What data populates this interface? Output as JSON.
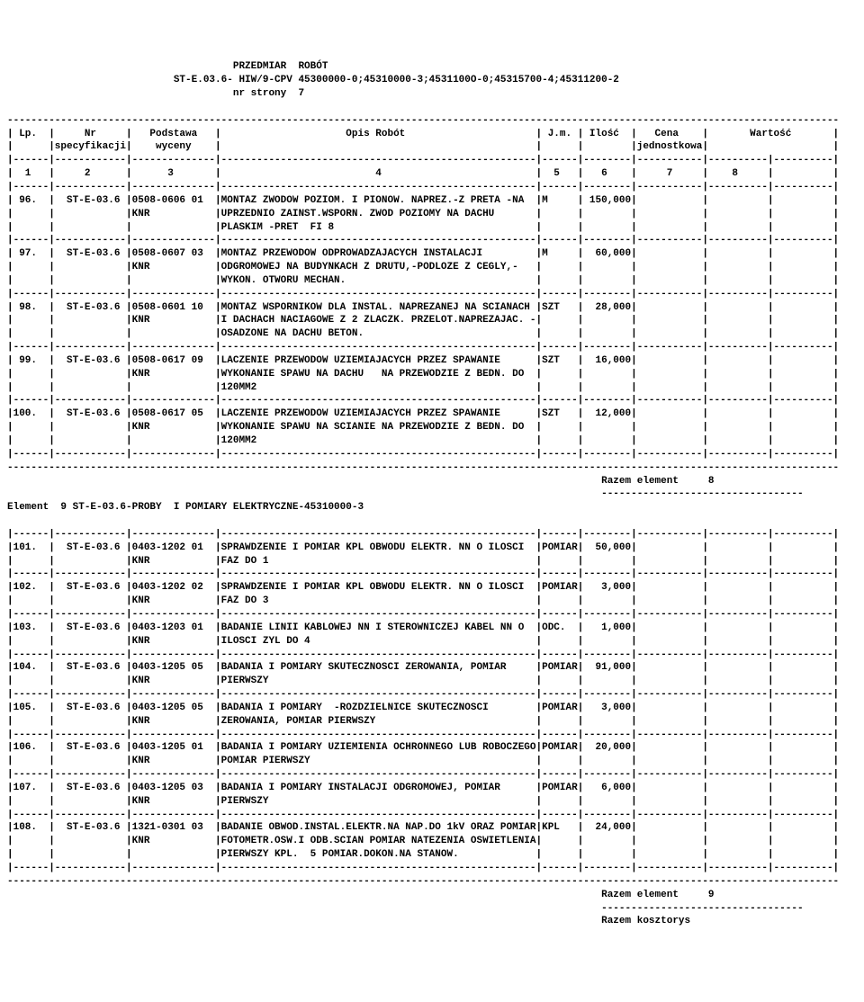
{
  "header": {
    "title1": "PRZEDMIAR  ROBÓT",
    "title2": "ST-E.03.6- HIW/9-CPV 45300000-0;45310000-3;4531100O-0;45315700-4;45311200-2",
    "title3": "nr strony  7"
  },
  "columns": {
    "c1": "Lp.",
    "c2": "Nr",
    "c2b": "specyfikacji",
    "c3": "Podstawa",
    "c3b": "wyceny",
    "c4": "Opis Robót",
    "c5": "J.m.",
    "c6": "Ilość",
    "c7": "Cena",
    "c7b": "jednostkowa",
    "c8": "Wartość"
  },
  "colnums": {
    "n1": "1",
    "n2": "2",
    "n3": "3",
    "n4": "4",
    "n5": "5",
    "n6": "6",
    "n7": "7",
    "n8": "8"
  },
  "rows": [
    {
      "lp": " 96.",
      "spec": "ST-E-03.6",
      "basis": "0508-0606 01",
      "basis2": "KNR",
      "desc": [
        "MONTAZ ZWODOW POZIOM. I PIONOW. NAPREZ.-Z PRETA -NA",
        "UPRZEDNIO ZAINST.WSPORN. ZWOD POZIOMY NA DACHU",
        "PLASKIM -PRET  FI 8"
      ],
      "jm": "M",
      "qty": "150,000"
    },
    {
      "lp": " 97.",
      "spec": "ST-E-03.6",
      "basis": "0508-0607 03",
      "basis2": "KNR",
      "desc": [
        "MONTAZ PRZEWODOW ODPROWADZAJACYCH INSTALACJI",
        "ODGROMOWEJ NA BUDYNKACH Z DRUTU,-PODLOZE Z CEGLY,-",
        "WYKON. OTWORU MECHAN."
      ],
      "jm": "M",
      "qty": "60,000"
    },
    {
      "lp": " 98.",
      "spec": "ST-E-03.6",
      "basis": "0508-0601 10",
      "basis2": "KNR",
      "desc": [
        "MONTAZ WSPORNIKOW DLA INSTAL. NAPREZANEJ NA SCIANACH",
        "I DACHACH NACIAGOWE Z 2 ZLACZK. PRZELOT.NAPREZAJAC. -",
        "OSADZONE NA DACHU BETON."
      ],
      "jm": "SZT",
      "qty": "28,000"
    },
    {
      "lp": " 99.",
      "spec": "ST-E-03.6",
      "basis": "0508-0617 09",
      "basis2": "KNR",
      "desc": [
        "LACZENIE PRZEWODOW UZIEMIAJACYCH PRZEZ SPAWANIE",
        "WYKONANIE SPAWU NA DACHU   NA PRZEWODZIE Z BEDN. DO",
        "120MM2"
      ],
      "jm": "SZT",
      "qty": "16,000"
    },
    {
      "lp": "100.",
      "spec": "ST-E-03.6",
      "basis": "0508-0617 05",
      "basis2": "KNR",
      "desc": [
        "LACZENIE PRZEWODOW UZIEMIAJACYCH PRZEZ SPAWANIE",
        "WYKONANIE SPAWU NA SCIANIE NA PRZEWODZIE Z BEDN. DO",
        "120MM2"
      ],
      "jm": "SZT",
      "qty": "12,000"
    }
  ],
  "summary1": {
    "label": "Razem element",
    "num": "8"
  },
  "element_header": "Element  9 ST-E-03.6-PROBY  I POMIARY ELEKTRYCZNE-45310000-3",
  "rows2": [
    {
      "lp": "101.",
      "spec": "ST-E-03.6",
      "basis": "0403-1202 01",
      "basis2": "KNR",
      "desc": [
        "SPRAWDZENIE I POMIAR KPL OBWODU ELEKTR. NN O ILOSCI",
        "FAZ DO 1"
      ],
      "jm": "POMIAR",
      "qty": "50,000"
    },
    {
      "lp": "102.",
      "spec": "ST-E-03.6",
      "basis": "0403-1202 02",
      "basis2": "KNR",
      "desc": [
        "SPRAWDZENIE I POMIAR KPL OBWODU ELEKTR. NN O ILOSCI",
        "FAZ DO 3"
      ],
      "jm": "POMIAR",
      "qty": "3,000"
    },
    {
      "lp": "103.",
      "spec": "ST-E-03.6",
      "basis": "0403-1203 01",
      "basis2": "KNR",
      "desc": [
        "BADANIE LINII KABLOWEJ NN I STEROWNICZEJ KABEL NN O",
        "ILOSCI ZYL DO 4"
      ],
      "jm": "ODC.",
      "qty": "1,000"
    },
    {
      "lp": "104.",
      "spec": "ST-E-03.6",
      "basis": "0403-1205 05",
      "basis2": "KNR",
      "desc": [
        "BADANIA I POMIARY SKUTECZNOSCI ZEROWANIA, POMIAR",
        "PIERWSZY"
      ],
      "jm": "POMIAR",
      "qty": "91,000"
    },
    {
      "lp": "105.",
      "spec": "ST-E-03.6",
      "basis": "0403-1205 05",
      "basis2": "KNR",
      "desc": [
        "BADANIA I POMIARY  -ROZDZIELNICE SKUTECZNOSCI",
        "ZEROWANIA, POMIAR PIERWSZY"
      ],
      "jm": "POMIAR",
      "qty": "3,000"
    },
    {
      "lp": "106.",
      "spec": "ST-E-03.6",
      "basis": "0403-1205 01",
      "basis2": "KNR",
      "desc": [
        "BADANIA I POMIARY UZIEMIENIA OCHRONNEGO LUB ROBOCZEGO,",
        "POMIAR PIERWSZY"
      ],
      "jm": "POMIAR",
      "qty": "20,000"
    },
    {
      "lp": "107.",
      "spec": "ST-E-03.6",
      "basis": "0403-1205 03",
      "basis2": "KNR",
      "desc": [
        "BADANIA I POMIARY INSTALACJI ODGROMOWEJ, POMIAR",
        "PIERWSZY"
      ],
      "jm": "POMIAR",
      "qty": "6,000"
    },
    {
      "lp": "108.",
      "spec": "ST-E-03.6",
      "basis": "1321-0301 03",
      "basis2": "KNR",
      "desc": [
        "BADANIE OBWOD.INSTAL.ELEKTR.NA NAP.DO 1kV ORAZ POMIAR.",
        "FOTOMETR.OSW.I ODB.SCIAN POMIAR NATEZENIA OSWIETLENIA,",
        "PIERWSZY KPL.  5 POMIAR.DOKON.NA STANOW."
      ],
      "jm": "KPL",
      "qty": "24,000"
    }
  ],
  "summary2": {
    "label": "Razem element",
    "num": "9"
  },
  "summary3": "Razem kosztorys",
  "sep": {
    "full": "--------------------------------------------------------------------------------------------------------------------------------------------",
    "row": "|------|------------|--------------|-----------------------------------------------------|------|--------|-----------|----------|----------|"
  }
}
